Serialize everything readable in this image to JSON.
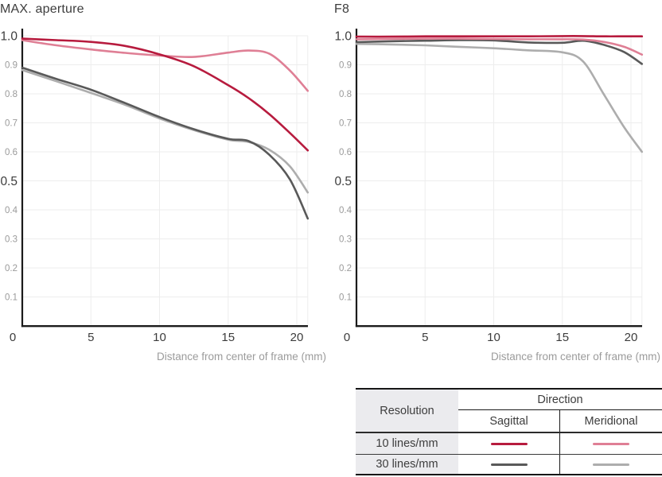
{
  "chart_data": [
    {
      "type": "line",
      "title": "MAX. aperture",
      "xlabel": "Distance from center of frame (mm)",
      "ylabel": "",
      "xlim": [
        0,
        20.8
      ],
      "ylim": [
        0,
        1.0
      ],
      "grid": true,
      "legend_position": "external-table-bottom-right",
      "x_tick_labels": [
        "0",
        "5",
        "10",
        "15",
        "20"
      ],
      "x_tick_values": [
        0,
        5,
        10,
        15,
        20
      ],
      "x_gridlines": [
        5,
        10,
        15,
        20,
        20.8
      ],
      "y_tick_labels": [
        "0.1",
        "0.2",
        "0.3",
        "0.4",
        "0.5",
        "0.6",
        "0.7",
        "0.8",
        "0.9",
        "1.0"
      ],
      "y_major_ticks": [
        "0.5",
        "1.0"
      ],
      "x": [
        0,
        2.5,
        5,
        7.5,
        10,
        12.5,
        15,
        16.5,
        18,
        19.5,
        20.8
      ],
      "series": [
        {
          "name": "10 lines/mm Sagittal",
          "color": "#b71b3e",
          "values": [
            0.99,
            0.985,
            0.979,
            0.965,
            0.936,
            0.895,
            0.83,
            0.785,
            0.73,
            0.665,
            0.605
          ]
        },
        {
          "name": "10 lines/mm Meridional",
          "color": "#df7f95",
          "values": [
            0.985,
            0.967,
            0.953,
            0.941,
            0.932,
            0.927,
            0.942,
            0.949,
            0.938,
            0.88,
            0.81
          ]
        },
        {
          "name": "30 lines/mm Sagittal",
          "color": "#595959",
          "values": [
            0.89,
            0.851,
            0.814,
            0.768,
            0.72,
            0.678,
            0.645,
            0.637,
            0.59,
            0.505,
            0.37
          ]
        },
        {
          "name": "30 lines/mm Meridional",
          "color": "#adadad",
          "values": [
            0.882,
            0.843,
            0.803,
            0.762,
            0.715,
            0.675,
            0.642,
            0.634,
            0.607,
            0.55,
            0.46
          ]
        }
      ]
    },
    {
      "type": "line",
      "title": "F8",
      "xlabel": "Distance from center of frame (mm)",
      "ylabel": "",
      "xlim": [
        0,
        20.8
      ],
      "ylim": [
        0,
        1.0
      ],
      "grid": true,
      "legend_position": "external-table-bottom-right",
      "x_tick_labels": [
        "0",
        "5",
        "10",
        "15",
        "20"
      ],
      "x_tick_values": [
        0,
        5,
        10,
        15,
        20
      ],
      "x_gridlines": [
        5,
        10,
        15,
        20,
        20.8
      ],
      "y_tick_labels": [
        "0.1",
        "0.2",
        "0.3",
        "0.4",
        "0.5",
        "0.6",
        "0.7",
        "0.8",
        "0.9",
        "1.0"
      ],
      "y_major_ticks": [
        "0.5",
        "1.0"
      ],
      "x": [
        0,
        2.5,
        5,
        7.5,
        10,
        12.5,
        15,
        16.5,
        18,
        19.5,
        20.8
      ],
      "series": [
        {
          "name": "10 lines/mm Sagittal",
          "color": "#b71b3e",
          "values": [
            0.997,
            0.997,
            0.998,
            0.998,
            0.998,
            0.998,
            0.999,
            0.999,
            0.998,
            0.998,
            0.998
          ]
        },
        {
          "name": "10 lines/mm Meridional",
          "color": "#df7f95",
          "values": [
            0.988,
            0.989,
            0.99,
            0.99,
            0.989,
            0.988,
            0.988,
            0.987,
            0.979,
            0.962,
            0.935
          ]
        },
        {
          "name": "30 lines/mm Sagittal",
          "color": "#595959",
          "values": [
            0.978,
            0.981,
            0.983,
            0.985,
            0.984,
            0.977,
            0.976,
            0.983,
            0.969,
            0.944,
            0.903
          ]
        },
        {
          "name": "30 lines/mm Meridional",
          "color": "#adadad",
          "values": [
            0.972,
            0.97,
            0.967,
            0.962,
            0.957,
            0.95,
            0.943,
            0.912,
            0.8,
            0.685,
            0.6
          ]
        }
      ]
    }
  ],
  "legend_table": {
    "resolution_header": "Resolution",
    "direction_header": "Direction",
    "direction_columns": [
      "Sagittal",
      "Meridional"
    ],
    "rows": [
      {
        "label": "10 lines/mm",
        "sagittal_color": "#b71b3e",
        "meridional_color": "#df7f95"
      },
      {
        "label": "30 lines/mm",
        "sagittal_color": "#595959",
        "meridional_color": "#adadad"
      }
    ]
  },
  "colors": {
    "axis": "#1b1b1b",
    "gridline": "#ededed",
    "major_tick_text": "#3c3c3c",
    "minor_tick_text": "#9a9a9a",
    "axis_title_text": "#9b9b9b",
    "table_cell_bg": "#ebebee"
  }
}
